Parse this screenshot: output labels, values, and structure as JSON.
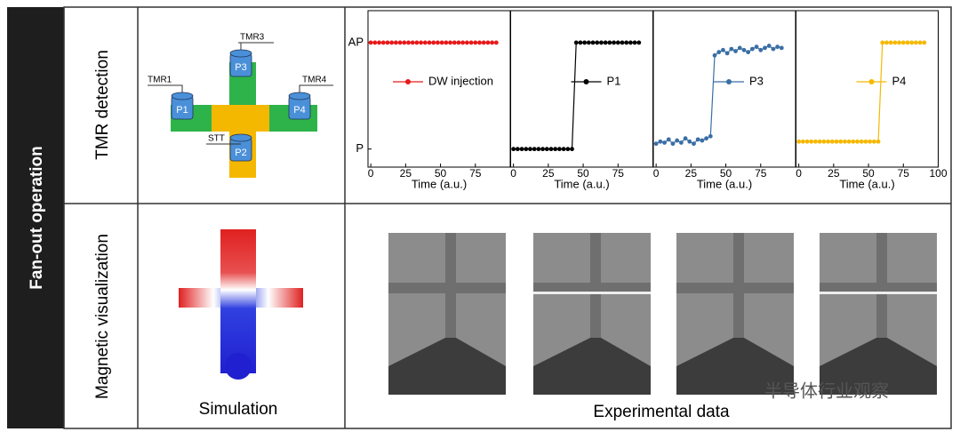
{
  "labels": {
    "side": "Fan-out operation",
    "row1": "TMR detection",
    "row2": "Magnetic visualization",
    "simulation": "Simulation",
    "experimental": "Experimental data",
    "watermark": "半导体行业观察"
  },
  "diagram": {
    "tmr": [
      "TMR1",
      "TMR3",
      "TMR4"
    ],
    "pads": [
      "P1",
      "P3",
      "P4",
      "P2"
    ],
    "stt": "STT"
  },
  "chart_data": [
    {
      "type": "line",
      "xlabel": "Time (a.u.)",
      "xlim": [
        -2,
        100
      ],
      "ylim": [
        -0.17,
        1.3
      ],
      "xticks": [
        0,
        25,
        50,
        75
      ],
      "yticks": [
        {
          "value": 1,
          "label": "AP"
        },
        {
          "value": 0,
          "label": "P"
        }
      ],
      "x": [
        0,
        3,
        6,
        9,
        12,
        15,
        18,
        21,
        24,
        27,
        30,
        33,
        36,
        39,
        42,
        45,
        48,
        51,
        54,
        57,
        60,
        63,
        66,
        69,
        72,
        75,
        78,
        81,
        84,
        87,
        90
      ],
      "series": [
        {
          "name": "DW injection",
          "color": "#e8191a",
          "values": [
            1,
            1,
            1,
            1,
            1,
            1,
            1,
            1,
            1,
            1,
            1,
            1,
            1,
            1,
            1,
            1,
            1,
            1,
            1,
            1,
            1,
            1,
            1,
            1,
            1,
            1,
            1,
            1,
            1,
            1,
            1
          ]
        }
      ]
    },
    {
      "type": "line",
      "xlabel": "Time (a.u.)",
      "xlim": [
        -2,
        100
      ],
      "ylim": [
        -0.17,
        1.3
      ],
      "xticks": [
        0,
        25,
        50,
        75
      ],
      "x": [
        0,
        3,
        6,
        9,
        12,
        15,
        18,
        21,
        24,
        27,
        30,
        33,
        36,
        39,
        42,
        45,
        48,
        51,
        54,
        57,
        60,
        63,
        66,
        69,
        72,
        75,
        78,
        81,
        84,
        87,
        90
      ],
      "series": [
        {
          "name": "P1",
          "color": "#000000",
          "values": [
            0,
            0,
            0,
            0,
            0,
            0,
            0,
            0,
            0,
            0,
            0,
            0,
            0,
            0,
            0,
            1,
            1,
            1,
            1,
            1,
            1,
            1,
            1,
            1,
            1,
            1,
            1,
            1,
            1,
            1,
            1
          ]
        }
      ]
    },
    {
      "type": "line",
      "xlabel": "Time (a.u.)",
      "xlim": [
        -2,
        100
      ],
      "ylim": [
        -0.17,
        1.3
      ],
      "xticks": [
        0,
        25,
        50,
        75
      ],
      "x": [
        0,
        3,
        6,
        9,
        12,
        15,
        18,
        21,
        24,
        27,
        30,
        33,
        36,
        39,
        42,
        45,
        48,
        51,
        54,
        57,
        60,
        63,
        66,
        69,
        72,
        75,
        78,
        81,
        84,
        87,
        90
      ],
      "series": [
        {
          "name": "P3",
          "color": "#3a6ea5",
          "values": [
            0.05,
            0.07,
            0.06,
            0.09,
            0.05,
            0.08,
            0.06,
            0.1,
            0.07,
            0.05,
            0.09,
            0.08,
            0.1,
            0.12,
            0.88,
            0.91,
            0.93,
            0.9,
            0.94,
            0.92,
            0.95,
            0.93,
            0.91,
            0.94,
            0.96,
            0.93,
            0.95,
            0.97,
            0.94,
            0.96,
            0.95
          ]
        }
      ]
    },
    {
      "type": "line",
      "xlabel": "Time (a.u.)",
      "xlim": [
        -2,
        100
      ],
      "ylim": [
        -0.17,
        1.3
      ],
      "xticks": [
        0,
        25,
        50,
        75,
        100
      ],
      "x": [
        0,
        3,
        6,
        9,
        12,
        15,
        18,
        21,
        24,
        27,
        30,
        33,
        36,
        39,
        42,
        45,
        48,
        51,
        54,
        57,
        60,
        63,
        66,
        69,
        72,
        75,
        78,
        81,
        84,
        87,
        90
      ],
      "series": [
        {
          "name": "P4",
          "color": "#f5b800",
          "values": [
            0.07,
            0.07,
            0.07,
            0.07,
            0.07,
            0.07,
            0.07,
            0.07,
            0.07,
            0.07,
            0.07,
            0.07,
            0.07,
            0.07,
            0.07,
            0.07,
            0.07,
            0.07,
            0.07,
            0.07,
            1,
            1,
            1,
            1,
            1,
            1,
            1,
            1,
            1,
            1,
            1
          ]
        }
      ]
    }
  ]
}
